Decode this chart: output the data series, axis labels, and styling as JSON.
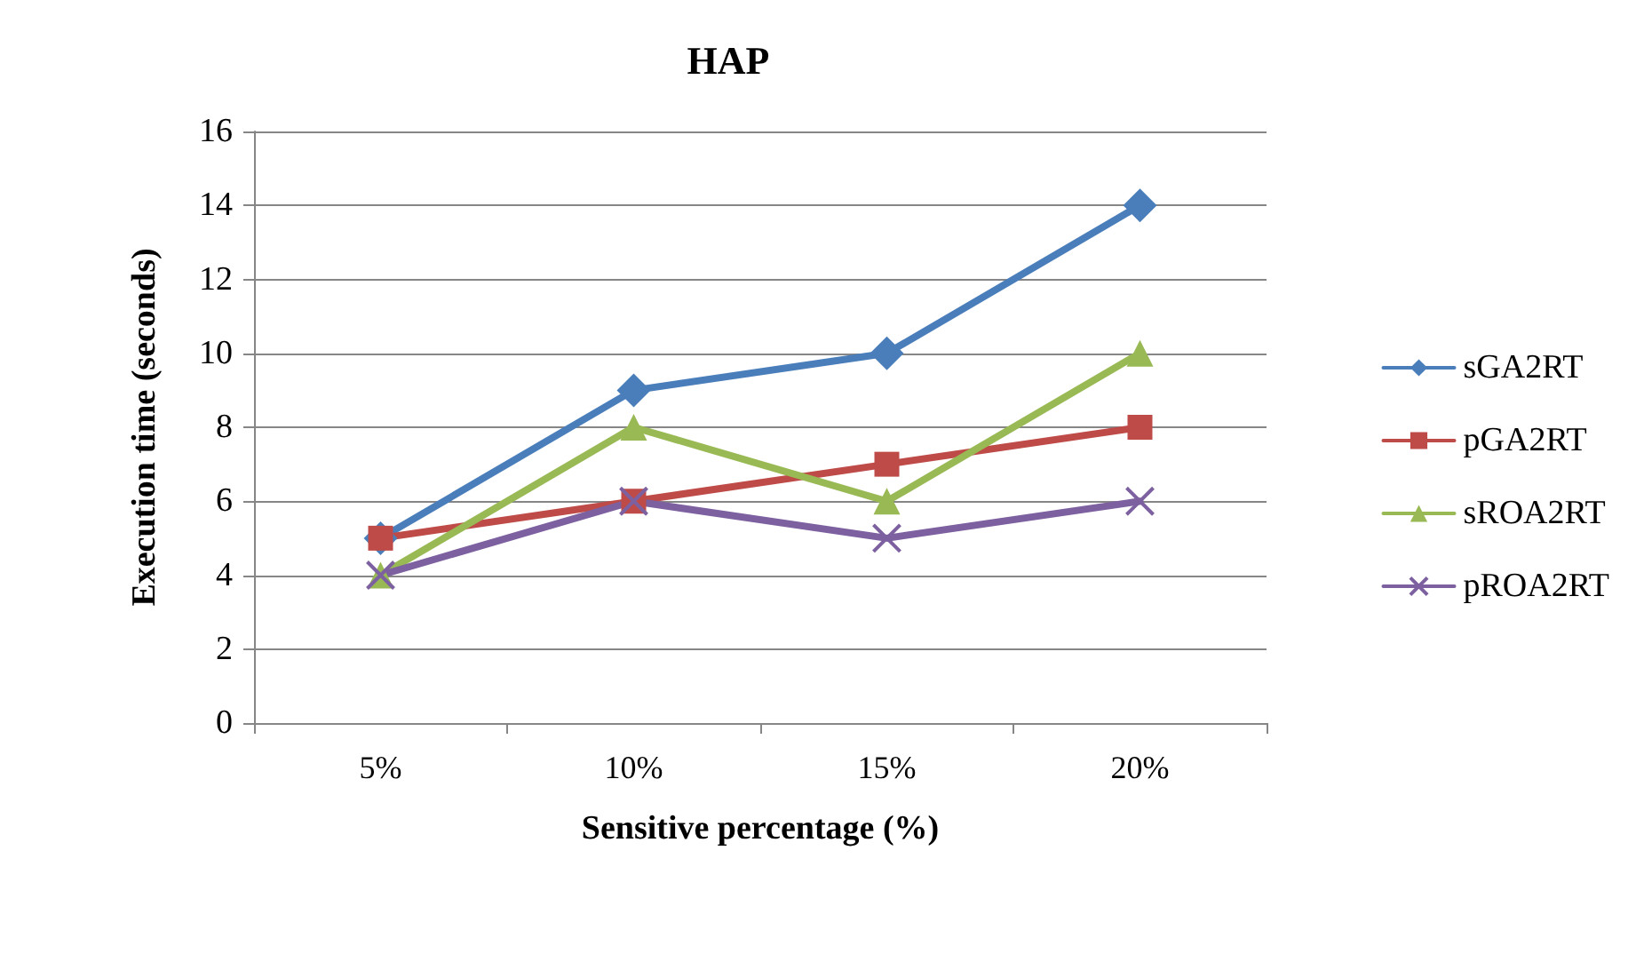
{
  "chart_data": {
    "type": "line",
    "title": "HAP",
    "xlabel": "Sensitive percentage (%)",
    "ylabel": "Execution time (seconds)",
    "categories": [
      "5%",
      "10%",
      "15%",
      "20%"
    ],
    "series": [
      {
        "name": "sGA2RT",
        "color": "#4a7ebb",
        "marker": "diamond",
        "values": [
          5,
          9,
          10,
          14
        ]
      },
      {
        "name": "pGA2RT",
        "color": "#be4b48",
        "marker": "square",
        "values": [
          5,
          6,
          7,
          8
        ]
      },
      {
        "name": "sROA2RT",
        "color": "#98b954",
        "marker": "triangle",
        "values": [
          4,
          8,
          6,
          10
        ]
      },
      {
        "name": "pROA2RT",
        "color": "#7d60a0",
        "marker": "cross",
        "values": [
          4,
          6,
          5,
          6
        ]
      }
    ],
    "ylim": [
      0,
      16
    ],
    "yticks": [
      0,
      2,
      4,
      6,
      8,
      10,
      12,
      14,
      16
    ],
    "grid": "y",
    "legend": "right",
    "line_style": "solid"
  }
}
